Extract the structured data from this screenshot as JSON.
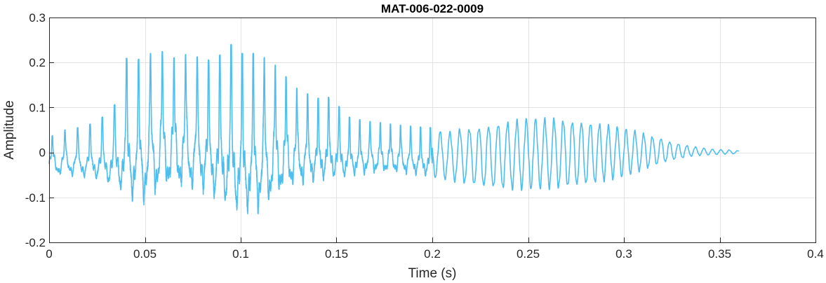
{
  "chart_data": {
    "type": "line",
    "title": "MAT-006-022-0009",
    "xlabel": "Time (s)",
    "ylabel": "Amplitude",
    "xlim": [
      0,
      0.4
    ],
    "ylim": [
      -0.2,
      0.3
    ],
    "grid": true,
    "x_ticks": [
      {
        "value": 0,
        "label": "0"
      },
      {
        "value": 0.05,
        "label": "0.05"
      },
      {
        "value": 0.1,
        "label": "0.1"
      },
      {
        "value": 0.15,
        "label": "0.15"
      },
      {
        "value": 0.2,
        "label": "0.2"
      },
      {
        "value": 0.25,
        "label": "0.25"
      },
      {
        "value": 0.3,
        "label": "0.3"
      },
      {
        "value": 0.35,
        "label": "0.35"
      },
      {
        "value": 0.4,
        "label": "0.4"
      }
    ],
    "y_ticks": [
      {
        "value": -0.2,
        "label": "-0.2"
      },
      {
        "value": -0.1,
        "label": "-0.1"
      },
      {
        "value": 0,
        "label": "0"
      },
      {
        "value": 0.1,
        "label": "0.1"
      },
      {
        "value": 0.2,
        "label": "0.2"
      },
      {
        "value": 0.3,
        "label": "0.3"
      }
    ],
    "series": [
      {
        "color": "#4DBEEE",
        "x": [
          0,
          0.005,
          0.01,
          0.015,
          0.02,
          0.025,
          0.03,
          0.035,
          0.04,
          0.045,
          0.05,
          0.055,
          0.06,
          0.065,
          0.07,
          0.075,
          0.08,
          0.085,
          0.09,
          0.095,
          0.1,
          0.105,
          0.11,
          0.115,
          0.12,
          0.125,
          0.13,
          0.135,
          0.14,
          0.145,
          0.15,
          0.155,
          0.16,
          0.165,
          0.17,
          0.175,
          0.18,
          0.185,
          0.19,
          0.195,
          0.2,
          0.205,
          0.21,
          0.215,
          0.22,
          0.225,
          0.23,
          0.235,
          0.24,
          0.245,
          0.25,
          0.255,
          0.26,
          0.265,
          0.27,
          0.275,
          0.28,
          0.285,
          0.29,
          0.295,
          0.3,
          0.305,
          0.31,
          0.315,
          0.32,
          0.325,
          0.33,
          0.335,
          0.34,
          0.345,
          0.35,
          0.355,
          0.36
        ],
        "upper": [
          0.03,
          0.05,
          0.05,
          0.055,
          0.06,
          0.07,
          0.085,
          0.11,
          0.21,
          0.2,
          0.22,
          0.22,
          0.225,
          0.21,
          0.22,
          0.21,
          0.215,
          0.2,
          0.22,
          0.24,
          0.22,
          0.22,
          0.22,
          0.2,
          0.19,
          0.16,
          0.14,
          0.13,
          0.12,
          0.125,
          0.11,
          0.08,
          0.075,
          0.07,
          0.068,
          0.065,
          0.062,
          0.06,
          0.058,
          0.056,
          0.055,
          0.053,
          0.052,
          0.06,
          0.062,
          0.066,
          0.07,
          0.075,
          0.078,
          0.082,
          0.085,
          0.085,
          0.085,
          0.085,
          0.082,
          0.08,
          0.078,
          0.075,
          0.07,
          0.065,
          0.06,
          0.055,
          0.048,
          0.04,
          0.035,
          0.025,
          0.02,
          0.015,
          0.012,
          0.008,
          0.007,
          0.006,
          0.004
        ],
        "lower": [
          -0.05,
          -0.06,
          -0.06,
          -0.065,
          -0.065,
          -0.07,
          -0.08,
          -0.09,
          -0.12,
          -0.13,
          -0.14,
          -0.12,
          -0.11,
          -0.1,
          -0.11,
          -0.11,
          -0.11,
          -0.12,
          -0.14,
          -0.15,
          -0.16,
          -0.16,
          -0.16,
          -0.14,
          -0.12,
          -0.1,
          -0.09,
          -0.085,
          -0.08,
          -0.075,
          -0.07,
          -0.065,
          -0.06,
          -0.058,
          -0.056,
          -0.055,
          -0.054,
          -0.056,
          -0.058,
          -0.06,
          -0.062,
          -0.065,
          -0.07,
          -0.075,
          -0.08,
          -0.085,
          -0.088,
          -0.09,
          -0.092,
          -0.092,
          -0.092,
          -0.09,
          -0.09,
          -0.09,
          -0.088,
          -0.085,
          -0.082,
          -0.078,
          -0.072,
          -0.066,
          -0.06,
          -0.052,
          -0.045,
          -0.035,
          -0.028,
          -0.02,
          -0.015,
          -0.01,
          -0.008,
          -0.006,
          -0.005,
          -0.004,
          -0.003
        ]
      }
    ]
  }
}
